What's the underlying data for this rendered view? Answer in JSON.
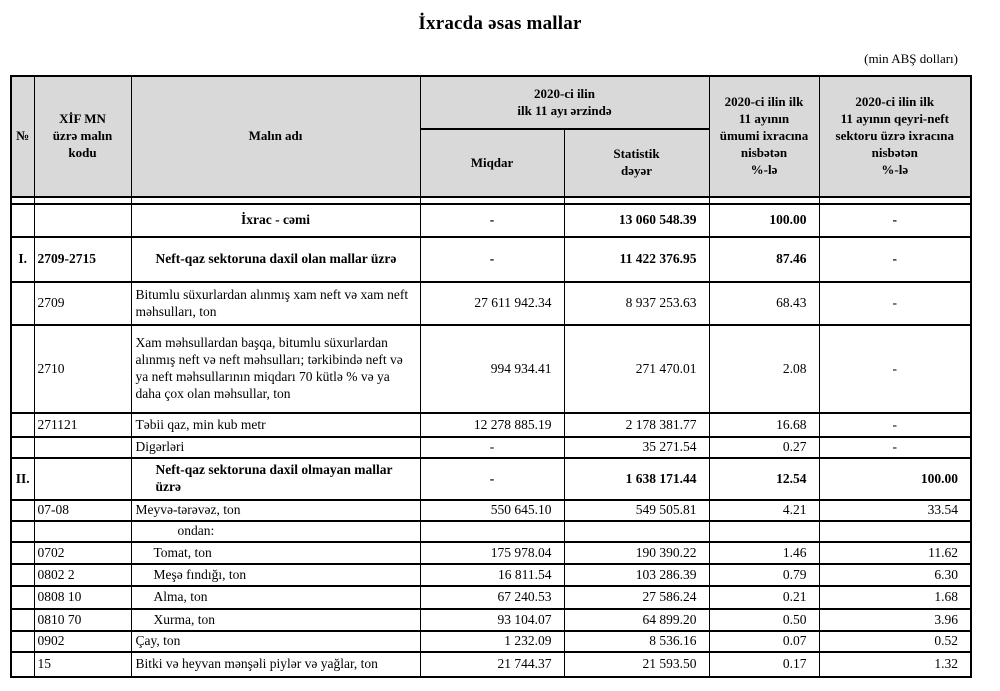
{
  "title": "İxracda əsas mallar",
  "unit_note": "(min ABŞ dolları)",
  "table": {
    "headers": {
      "col_no": "№",
      "col_code": "XİF MN\nüzrə malın\nkodu",
      "col_name": "Malın adı",
      "group_period": "2020-ci ilin\nilk 11 ayı ərzində",
      "col_qty": "Miqdar",
      "col_value": "Statistik\ndəyər",
      "col_pct_total": "2020-ci ilin ilk\n11 ayının\nümumi ixracına\nnisbətən\n%-lə",
      "col_pct_nonoil": "2020-ci ilin ilk\n11 ayının qeyri-neft\nsektoru üzrə ixracına\nnisbətən\n%-lə"
    },
    "rows": [
      {
        "no": "",
        "code": "",
        "name": "İxrac - cəmi",
        "qty": "-",
        "value": "13 060 548.39",
        "pct1": "100.00",
        "pct2": "-",
        "bold": true,
        "name_style": "name-center"
      },
      {
        "no": "I.",
        "code": "2709-2715",
        "name": "Neft-qaz sektoruna daxil olan mallar üzrə",
        "qty": "-",
        "value": "11 422 376.95",
        "pct1": "87.46",
        "pct2": "-",
        "bold": true,
        "name_style": "ind2"
      },
      {
        "no": "",
        "code": "2709",
        "name": "Bitumlu süxurlardan alınmış xam neft və xam neft məhsulları, ton",
        "qty": "27 611 942.34",
        "value": "8 937 253.63",
        "pct1": "68.43",
        "pct2": "-",
        "bold": false,
        "name_style": "ind0"
      },
      {
        "no": "",
        "code": "2710",
        "name": "Xam məhsullardan başqa, bitumlu süxurlardan alınmış neft və neft məhsulları; tərkibində neft və ya neft məhsullarının miqdarı 70 kütlə % və ya daha çox olan məhsullar, ton",
        "qty": "994 934.41",
        "value": "271 470.01",
        "pct1": "2.08",
        "pct2": "-",
        "bold": false,
        "name_style": "ind0"
      },
      {
        "no": "",
        "code": "271121",
        "name": "Təbii qaz, min kub metr",
        "qty": "12 278 885.19",
        "value": "2 178 381.77",
        "pct1": "16.68",
        "pct2": "-",
        "bold": false,
        "name_style": "ind0"
      },
      {
        "no": "",
        "code": "",
        "name": "Digərləri",
        "qty": "-",
        "value": "35 271.54",
        "pct1": "0.27",
        "pct2": "-",
        "bold": false,
        "name_style": "ind0"
      },
      {
        "no": "II.",
        "code": "",
        "name": "Neft-qaz sektoruna daxil olmayan mallar üzrə",
        "qty": "-",
        "value": "1 638 171.44",
        "pct1": "12.54",
        "pct2": "100.00",
        "bold": true,
        "name_style": "ind2"
      },
      {
        "no": "",
        "code": "07-08",
        "name": "Meyvə-tərəvəz, ton",
        "qty": "550 645.10",
        "value": "549 505.81",
        "pct1": "4.21",
        "pct2": "33.54",
        "bold": false,
        "name_style": "ind0"
      },
      {
        "no": "",
        "code": "",
        "name": "ondan:",
        "qty": "",
        "value": "",
        "pct1": "",
        "pct2": "",
        "bold": false,
        "name_style": "ind3"
      },
      {
        "no": "",
        "code": "0702",
        "name": "Tomat, ton",
        "qty": "175 978.04",
        "value": "190 390.22",
        "pct1": "1.46",
        "pct2": "11.62",
        "bold": false,
        "name_style": "ind1"
      },
      {
        "no": "",
        "code": "0802 2",
        "name": "Meşə fındığı, ton",
        "qty": "16 811.54",
        "value": "103 286.39",
        "pct1": "0.79",
        "pct2": "6.30",
        "bold": false,
        "name_style": "ind1"
      },
      {
        "no": "",
        "code": "0808 10",
        "name": "Alma, ton",
        "qty": "67 240.53",
        "value": "27 586.24",
        "pct1": "0.21",
        "pct2": "1.68",
        "bold": false,
        "name_style": "ind1"
      },
      {
        "no": "",
        "code": "0810 70",
        "name": "Xurma, ton",
        "qty": "93 104.07",
        "value": "64 899.20",
        "pct1": "0.50",
        "pct2": "3.96",
        "bold": false,
        "name_style": "ind1"
      },
      {
        "no": "",
        "code": "0902",
        "name": "Çay, ton",
        "qty": "1 232.09",
        "value": "8 536.16",
        "pct1": "0.07",
        "pct2": "0.52",
        "bold": false,
        "name_style": "ind0"
      },
      {
        "no": "",
        "code": "15",
        "name": "Bitki və heyvan mənşəli piylər və yağlar, ton",
        "qty": "21 744.37",
        "value": "21 593.50",
        "pct1": "0.17",
        "pct2": "1.32",
        "bold": false,
        "name_style": "ind0"
      }
    ]
  }
}
